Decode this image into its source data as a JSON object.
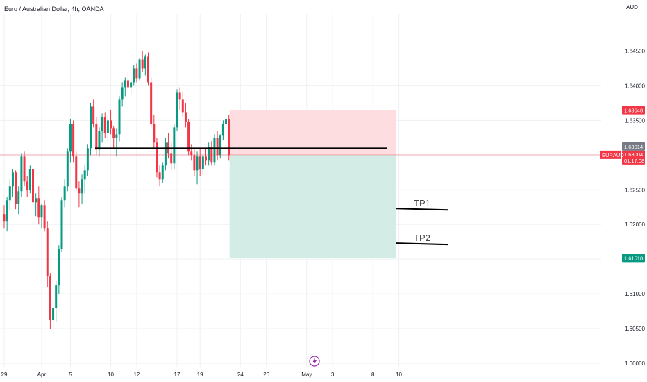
{
  "header": {
    "title": "Euro / Australian Dollar, 4h, OANDA",
    "currency": "AUD"
  },
  "colors": {
    "up": "#089981",
    "down": "#f23645",
    "stop_zone": "#fddde0",
    "target_zone": "#d3ece5",
    "grid": "#eef0f3",
    "price_line": "#f23645",
    "level_line": "#000000",
    "tp_line": "#000000",
    "last_label": "#787b86"
  },
  "chart_data": {
    "type": "candlestick",
    "symbol": "EURAUD",
    "timeframe": "4h",
    "ylim": [
      1.6,
      1.6475
    ],
    "y_ticks": [
      {
        "value": 1.645,
        "label": "1.64500"
      },
      {
        "value": 1.64,
        "label": "1.64000"
      },
      {
        "value": 1.635,
        "label": "1.63500"
      },
      {
        "value": 1.63,
        "label": "1.63000"
      },
      {
        "value": 1.625,
        "label": "1.62500"
      },
      {
        "value": 1.62,
        "label": "1.62000"
      },
      {
        "value": 1.615,
        "label": "1.61500"
      },
      {
        "value": 1.61,
        "label": "1.61000"
      },
      {
        "value": 1.605,
        "label": "1.60500"
      },
      {
        "value": 1.6,
        "label": "1.60000"
      }
    ],
    "x_ticks": [
      {
        "bar": 0,
        "label": "29"
      },
      {
        "bar": 13,
        "label": "Apr"
      },
      {
        "bar": 23,
        "label": "5"
      },
      {
        "bar": 37,
        "label": "10"
      },
      {
        "bar": 46,
        "label": "12"
      },
      {
        "bar": 60,
        "label": "17"
      },
      {
        "bar": 68,
        "label": "19"
      },
      {
        "bar": 82,
        "label": "24"
      },
      {
        "bar": 91,
        "label": "26"
      },
      {
        "bar": 105,
        "label": "May"
      },
      {
        "bar": 114,
        "label": "3"
      },
      {
        "bar": 128,
        "label": "8"
      },
      {
        "bar": 137,
        "label": "10"
      }
    ],
    "candles": [
      [
        1.6215,
        1.6228,
        1.6195,
        1.6205
      ],
      [
        1.6205,
        1.624,
        1.619,
        1.6235
      ],
      [
        1.6235,
        1.6265,
        1.622,
        1.6255
      ],
      [
        1.6255,
        1.628,
        1.624,
        1.6275
      ],
      [
        1.6275,
        1.6278,
        1.6222,
        1.623
      ],
      [
        1.623,
        1.6255,
        1.6215,
        1.6248
      ],
      [
        1.6248,
        1.6302,
        1.624,
        1.6298
      ],
      [
        1.6298,
        1.6305,
        1.6255,
        1.6262
      ],
      [
        1.6262,
        1.627,
        1.624,
        1.625
      ],
      [
        1.625,
        1.6285,
        1.6245,
        1.628
      ],
      [
        1.628,
        1.629,
        1.6225,
        1.6232
      ],
      [
        1.6232,
        1.6245,
        1.6212,
        1.6238
      ],
      [
        1.6238,
        1.6255,
        1.62,
        1.621
      ],
      [
        1.621,
        1.623,
        1.6195,
        1.6228
      ],
      [
        1.6228,
        1.6235,
        1.619,
        1.6195
      ],
      [
        1.6195,
        1.6205,
        1.611,
        1.6125
      ],
      [
        1.6125,
        1.613,
        1.605,
        1.6062
      ],
      [
        1.6062,
        1.609,
        1.6038,
        1.608
      ],
      [
        1.608,
        1.6118,
        1.606,
        1.6112
      ],
      [
        1.6112,
        1.617,
        1.61,
        1.6165
      ],
      [
        1.6165,
        1.624,
        1.616,
        1.6235
      ],
      [
        1.6235,
        1.6265,
        1.6225,
        1.6255
      ],
      [
        1.6255,
        1.631,
        1.6248,
        1.6305
      ],
      [
        1.6305,
        1.6352,
        1.629,
        1.6345
      ],
      [
        1.6345,
        1.635,
        1.629,
        1.6298
      ],
      [
        1.6298,
        1.6305,
        1.6248,
        1.6252
      ],
      [
        1.6252,
        1.6262,
        1.6225,
        1.6245
      ],
      [
        1.6245,
        1.6272,
        1.623,
        1.6265
      ],
      [
        1.6265,
        1.6285,
        1.6245,
        1.6278
      ],
      [
        1.6278,
        1.6315,
        1.627,
        1.631
      ],
      [
        1.631,
        1.6375,
        1.63,
        1.637
      ],
      [
        1.637,
        1.638,
        1.634,
        1.6345
      ],
      [
        1.6345,
        1.6355,
        1.63,
        1.6308
      ],
      [
        1.6308,
        1.634,
        1.6298,
        1.6335
      ],
      [
        1.6335,
        1.636,
        1.6318,
        1.6355
      ],
      [
        1.6355,
        1.6362,
        1.6325,
        1.6332
      ],
      [
        1.6332,
        1.6358,
        1.6318,
        1.635
      ],
      [
        1.635,
        1.6365,
        1.633,
        1.6338
      ],
      [
        1.6338,
        1.6342,
        1.631,
        1.6325
      ],
      [
        1.6325,
        1.6338,
        1.6298,
        1.633
      ],
      [
        1.633,
        1.6385,
        1.632,
        1.638
      ],
      [
        1.638,
        1.6405,
        1.637,
        1.6398
      ],
      [
        1.6398,
        1.6412,
        1.6385,
        1.6408
      ],
      [
        1.6408,
        1.642,
        1.6392,
        1.6398
      ],
      [
        1.6398,
        1.6412,
        1.6388,
        1.6405
      ],
      [
        1.6405,
        1.643,
        1.64,
        1.6425
      ],
      [
        1.6425,
        1.6432,
        1.6405,
        1.641
      ],
      [
        1.641,
        1.644,
        1.6408,
        1.6438
      ],
      [
        1.6438,
        1.645,
        1.642,
        1.6425
      ],
      [
        1.6425,
        1.6445,
        1.6415,
        1.6442
      ],
      [
        1.6442,
        1.6448,
        1.64,
        1.6405
      ],
      [
        1.6405,
        1.6412,
        1.634,
        1.6345
      ],
      [
        1.6345,
        1.6358,
        1.631,
        1.6318
      ],
      [
        1.6318,
        1.6325,
        1.6268,
        1.6275
      ],
      [
        1.6275,
        1.6285,
        1.6255,
        1.6265
      ],
      [
        1.6265,
        1.629,
        1.626,
        1.6285
      ],
      [
        1.6285,
        1.6325,
        1.6278,
        1.6318
      ],
      [
        1.6318,
        1.6332,
        1.6295,
        1.6302
      ],
      [
        1.6302,
        1.6318,
        1.6278,
        1.6288
      ],
      [
        1.6288,
        1.6345,
        1.628,
        1.634
      ],
      [
        1.634,
        1.6395,
        1.6335,
        1.639
      ],
      [
        1.639,
        1.6398,
        1.6365,
        1.638
      ],
      [
        1.638,
        1.6392,
        1.6355,
        1.6362
      ],
      [
        1.6362,
        1.6375,
        1.634,
        1.6348
      ],
      [
        1.6348,
        1.6352,
        1.63,
        1.6305
      ],
      [
        1.6305,
        1.6315,
        1.6292,
        1.63
      ],
      [
        1.63,
        1.631,
        1.627,
        1.6278
      ],
      [
        1.6278,
        1.6305,
        1.6258,
        1.6298
      ],
      [
        1.6298,
        1.631,
        1.627,
        1.628
      ],
      [
        1.628,
        1.6302,
        1.6272,
        1.6298
      ],
      [
        1.6298,
        1.631,
        1.6285,
        1.6292
      ],
      [
        1.6292,
        1.6318,
        1.6285,
        1.6312
      ],
      [
        1.6312,
        1.632,
        1.6285,
        1.629
      ],
      [
        1.629,
        1.633,
        1.6285,
        1.6325
      ],
      [
        1.6325,
        1.6335,
        1.6292,
        1.63
      ],
      [
        1.63,
        1.633,
        1.6295,
        1.6328
      ],
      [
        1.6328,
        1.635,
        1.6322,
        1.6345
      ],
      [
        1.6345,
        1.6358,
        1.6338,
        1.6352
      ],
      [
        1.6352,
        1.6358,
        1.6292,
        1.63
      ]
    ],
    "horizontal_level": 1.631,
    "current_price": 1.63004,
    "last_close_label": "1.63014",
    "stop_level": 1.63648,
    "target_level": 1.61518,
    "tp1_level": 1.6222,
    "tp2_level": 1.6172
  },
  "price_tags": {
    "stop": "1.63648",
    "last": "1.63014",
    "current": "1.63004",
    "countdown": "01:17:08",
    "symbol": "EURAUD",
    "target": "1.61518"
  },
  "annotations": {
    "tp1": "TP1",
    "tp2": "TP2"
  },
  "icons": {
    "event_marker": "lightning-icon"
  }
}
